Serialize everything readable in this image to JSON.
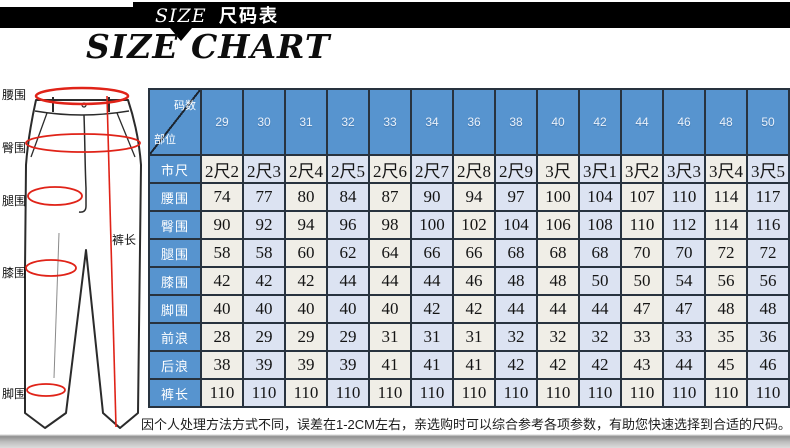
{
  "banner": {
    "title_en": "SIZE",
    "title_zh": "尺码表"
  },
  "subtitle": "SIZE CHART",
  "diagram": {
    "labels": {
      "waist": "腰围",
      "hip": "臀围",
      "thigh": "腿围",
      "knee": "膝围",
      "ankle": "脚围",
      "length": "裤长"
    }
  },
  "table": {
    "corner": {
      "top": "码数",
      "bottom": "部位"
    },
    "sizes": [
      "29",
      "30",
      "31",
      "32",
      "33",
      "34",
      "36",
      "38",
      "40",
      "42",
      "44",
      "46",
      "48",
      "50"
    ],
    "rows": [
      {
        "label": "市尺",
        "values": [
          "2尺2",
          "2尺3",
          "2尺4",
          "2尺5",
          "2尺6",
          "2尺7",
          "2尺8",
          "2尺9",
          "3尺",
          "3尺1",
          "3尺2",
          "3尺3",
          "3尺4",
          "3尺5"
        ]
      },
      {
        "label": "腰围",
        "values": [
          "74",
          "77",
          "80",
          "84",
          "87",
          "90",
          "94",
          "97",
          "100",
          "104",
          "107",
          "110",
          "114",
          "117"
        ]
      },
      {
        "label": "臀围",
        "values": [
          "90",
          "92",
          "94",
          "96",
          "98",
          "100",
          "102",
          "104",
          "106",
          "108",
          "110",
          "112",
          "114",
          "116"
        ]
      },
      {
        "label": "腿围",
        "values": [
          "58",
          "58",
          "60",
          "62",
          "64",
          "66",
          "66",
          "68",
          "68",
          "68",
          "70",
          "70",
          "72",
          "72"
        ]
      },
      {
        "label": "膝围",
        "values": [
          "42",
          "42",
          "42",
          "44",
          "44",
          "44",
          "46",
          "48",
          "48",
          "50",
          "50",
          "54",
          "56",
          "56"
        ]
      },
      {
        "label": "脚围",
        "values": [
          "40",
          "40",
          "40",
          "40",
          "40",
          "42",
          "42",
          "44",
          "44",
          "44",
          "47",
          "47",
          "48",
          "48"
        ]
      },
      {
        "label": "前浪",
        "values": [
          "28",
          "29",
          "29",
          "29",
          "31",
          "31",
          "31",
          "32",
          "32",
          "32",
          "33",
          "33",
          "35",
          "36"
        ]
      },
      {
        "label": "后浪",
        "values": [
          "38",
          "39",
          "39",
          "39",
          "41",
          "41",
          "41",
          "42",
          "42",
          "42",
          "43",
          "44",
          "45",
          "46"
        ]
      },
      {
        "label": "裤长",
        "values": [
          "110",
          "110",
          "110",
          "110",
          "110",
          "110",
          "110",
          "110",
          "110",
          "110",
          "110",
          "110",
          "110",
          "110"
        ]
      }
    ]
  },
  "footer": {
    "note": "因个人处理方法方式不同，误差在1-2CM左右，亲选购时可以综合参考各项参数，有助您快速选择到合适的尺码。"
  },
  "colors": {
    "banner_bg": "#000000",
    "header_blue": "#5794CF",
    "cell_gray": "#F0EEE7",
    "cell_blue": "#DCE3F2",
    "grid_border": "#28333F",
    "measure_red": "#E02318"
  }
}
